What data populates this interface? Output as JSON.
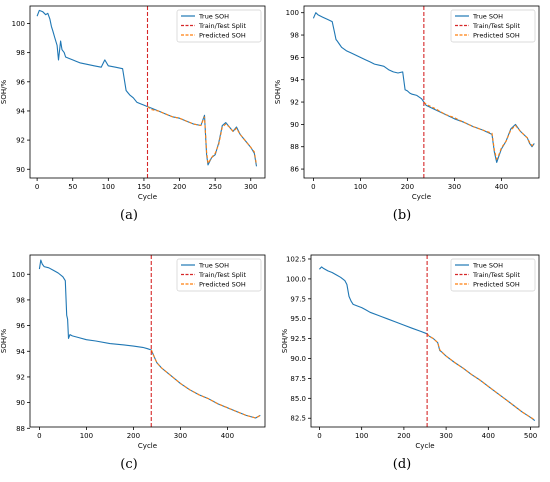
{
  "panel_labels": [
    "(a)",
    "(b)",
    "(c)",
    "(d)"
  ],
  "legend_labels": [
    "True SOH",
    "Train/Test Split",
    "Predicted SOH"
  ],
  "colors": {
    "true": "#1f77b4",
    "split": "#d62728",
    "predicted": "#ff7f0e"
  },
  "chart_data": [
    {
      "type": "line",
      "title": "",
      "xlabel": "Cycle",
      "ylabel": "SOH/%",
      "xlim": [
        -10,
        320
      ],
      "ylim": [
        89.4,
        101.2
      ],
      "xticks": [
        0,
        50,
        100,
        150,
        200,
        250,
        300
      ],
      "yticks": [
        90,
        92,
        94,
        96,
        98,
        100
      ],
      "legend": "top-right",
      "split_x": 155,
      "series": [
        {
          "name": "True SOH",
          "x": [
            0,
            3,
            8,
            12,
            15,
            18,
            20,
            22,
            25,
            28,
            30,
            33,
            35,
            38,
            40,
            45,
            50,
            55,
            60,
            70,
            80,
            90,
            95,
            100,
            110,
            120,
            125,
            130,
            135,
            140,
            145,
            150,
            155,
            160,
            170,
            180,
            190,
            200,
            210,
            220,
            230,
            235,
            238,
            240,
            245,
            250,
            255,
            260,
            265,
            270,
            275,
            280,
            285,
            290,
            295,
            300,
            305,
            308
          ],
          "y": [
            100.5,
            100.9,
            100.8,
            100.6,
            100.7,
            100.3,
            99.8,
            99.5,
            99.0,
            98.5,
            97.5,
            98.8,
            98.2,
            98.0,
            97.7,
            97.6,
            97.5,
            97.4,
            97.3,
            97.2,
            97.1,
            97.0,
            97.5,
            97.1,
            97.0,
            96.9,
            95.4,
            95.1,
            94.9,
            94.6,
            94.5,
            94.4,
            94.3,
            94.2,
            94.0,
            93.8,
            93.6,
            93.5,
            93.3,
            93.1,
            93.0,
            93.7,
            91.0,
            90.3,
            90.8,
            91.0,
            91.8,
            93.0,
            93.2,
            92.9,
            92.6,
            92.9,
            92.4,
            92.1,
            91.8,
            91.5,
            91.1,
            90.2
          ]
        },
        {
          "name": "Predicted SOH",
          "x": [
            155,
            160,
            170,
            180,
            190,
            200,
            210,
            220,
            230,
            235,
            238,
            240,
            245,
            250,
            255,
            260,
            265,
            270,
            275,
            280,
            285,
            290,
            295,
            300,
            305,
            308
          ],
          "y": [
            94.3,
            94.1,
            94.0,
            93.8,
            93.6,
            93.5,
            93.3,
            93.1,
            93.0,
            93.6,
            91.2,
            90.4,
            90.8,
            91.1,
            91.7,
            92.9,
            93.1,
            92.9,
            92.6,
            92.8,
            92.4,
            92.1,
            91.8,
            91.5,
            91.2,
            90.3
          ]
        }
      ]
    },
    {
      "type": "line",
      "title": "",
      "xlabel": "Cycle",
      "ylabel": "SOH/%",
      "xlim": [
        -20,
        480
      ],
      "ylim": [
        85.2,
        100.6
      ],
      "xticks": [
        0,
        100,
        200,
        300,
        400
      ],
      "yticks": [
        86,
        88,
        90,
        92,
        94,
        96,
        98,
        100
      ],
      "legend": "top-right",
      "split_x": 235,
      "series": [
        {
          "name": "True SOH",
          "x": [
            0,
            5,
            10,
            20,
            30,
            40,
            45,
            48,
            50,
            55,
            60,
            70,
            80,
            90,
            100,
            110,
            120,
            130,
            140,
            150,
            160,
            170,
            180,
            190,
            195,
            200,
            205,
            210,
            220,
            230,
            235,
            240,
            250,
            260,
            280,
            300,
            320,
            340,
            360,
            380,
            385,
            390,
            395,
            400,
            410,
            420,
            430,
            440,
            450,
            455,
            460,
            465,
            470
          ],
          "y": [
            99.5,
            100.0,
            99.8,
            99.6,
            99.4,
            99.2,
            98.2,
            97.6,
            97.5,
            97.2,
            96.9,
            96.6,
            96.4,
            96.2,
            96.0,
            95.8,
            95.6,
            95.4,
            95.3,
            95.2,
            94.9,
            94.7,
            94.6,
            94.7,
            93.1,
            93.0,
            92.8,
            92.7,
            92.6,
            92.3,
            92.0,
            91.7,
            91.5,
            91.3,
            90.9,
            90.5,
            90.2,
            89.8,
            89.5,
            89.1,
            87.5,
            86.6,
            87.2,
            87.8,
            88.5,
            89.6,
            90.0,
            89.4,
            89.0,
            88.8,
            88.3,
            88.0,
            88.3
          ]
        },
        {
          "name": "Predicted SOH",
          "x": [
            235,
            240,
            250,
            260,
            280,
            300,
            320,
            340,
            360,
            380,
            385,
            390,
            395,
            400,
            410,
            420,
            430,
            440,
            450,
            455,
            460,
            465,
            470
          ],
          "y": [
            92.0,
            91.8,
            91.6,
            91.4,
            90.9,
            90.6,
            90.2,
            89.8,
            89.5,
            89.2,
            87.7,
            86.9,
            87.3,
            87.9,
            88.5,
            89.5,
            89.9,
            89.4,
            89.0,
            88.8,
            88.4,
            88.1,
            88.3
          ]
        }
      ]
    },
    {
      "type": "line",
      "title": "",
      "xlabel": "Cycle",
      "ylabel": "SOH/%",
      "xlim": [
        -20,
        480
      ],
      "ylim": [
        88.1,
        101.5
      ],
      "xticks": [
        0,
        100,
        200,
        300,
        400
      ],
      "yticks": [
        88,
        90,
        92,
        94,
        96,
        98,
        100
      ],
      "legend": "top-right",
      "split_x": 238,
      "series": [
        {
          "name": "True SOH",
          "x": [
            0,
            3,
            6,
            10,
            20,
            30,
            40,
            50,
            55,
            58,
            60,
            62,
            65,
            70,
            80,
            100,
            120,
            150,
            180,
            200,
            220,
            230,
            238,
            245,
            250,
            260,
            280,
            300,
            320,
            340,
            360,
            380,
            400,
            420,
            440,
            460,
            470
          ],
          "y": [
            100.4,
            101.1,
            100.8,
            100.6,
            100.5,
            100.3,
            100.1,
            99.8,
            99.5,
            96.8,
            96.5,
            95.0,
            95.3,
            95.2,
            95.1,
            94.9,
            94.8,
            94.6,
            94.5,
            94.4,
            94.3,
            94.2,
            94.1,
            93.5,
            93.1,
            92.7,
            92.1,
            91.5,
            91.0,
            90.6,
            90.3,
            89.9,
            89.6,
            89.3,
            89.0,
            88.8,
            89.0
          ]
        },
        {
          "name": "Predicted SOH",
          "x": [
            238,
            245,
            250,
            260,
            280,
            300,
            320,
            340,
            360,
            380,
            400,
            420,
            440,
            460,
            470
          ],
          "y": [
            94.1,
            93.5,
            93.1,
            92.7,
            92.1,
            91.5,
            91.0,
            90.6,
            90.3,
            89.9,
            89.6,
            89.3,
            89.0,
            88.8,
            89.0
          ]
        }
      ]
    },
    {
      "type": "line",
      "title": "",
      "xlabel": "Cycle",
      "ylabel": "SOH/%",
      "xlim": [
        -20,
        520
      ],
      "ylim": [
        81.4,
        103.0
      ],
      "xticks": [
        0,
        100,
        200,
        300,
        400,
        500
      ],
      "yticks": [
        82.5,
        85.0,
        87.5,
        90.0,
        92.5,
        95.0,
        97.5,
        100.0,
        102.5
      ],
      "legend": "top-right",
      "split_x": 255,
      "series": [
        {
          "name": "True SOH",
          "x": [
            0,
            5,
            10,
            20,
            30,
            40,
            50,
            60,
            65,
            70,
            75,
            80,
            90,
            100,
            110,
            120,
            140,
            160,
            180,
            200,
            220,
            240,
            255,
            260,
            270,
            280,
            285,
            290,
            300,
            320,
            340,
            360,
            380,
            400,
            420,
            440,
            460,
            480,
            500,
            510
          ],
          "y": [
            101.2,
            101.5,
            101.3,
            101.0,
            100.8,
            100.5,
            100.2,
            99.8,
            99.3,
            97.8,
            97.2,
            96.8,
            96.6,
            96.4,
            96.1,
            95.8,
            95.4,
            95.0,
            94.6,
            94.2,
            93.8,
            93.4,
            93.1,
            92.8,
            92.5,
            92.0,
            91.0,
            90.8,
            90.3,
            89.5,
            88.8,
            88.0,
            87.3,
            86.5,
            85.7,
            84.9,
            84.1,
            83.3,
            82.6,
            82.2
          ]
        },
        {
          "name": "Predicted SOH",
          "x": [
            255,
            260,
            270,
            280,
            285,
            290,
            300,
            320,
            340,
            360,
            380,
            400,
            420,
            440,
            460,
            480,
            500,
            510
          ],
          "y": [
            93.1,
            92.8,
            92.5,
            92.0,
            91.1,
            90.8,
            90.3,
            89.5,
            88.8,
            88.0,
            87.3,
            86.5,
            85.7,
            84.9,
            84.1,
            83.3,
            82.6,
            82.3
          ]
        }
      ]
    }
  ]
}
